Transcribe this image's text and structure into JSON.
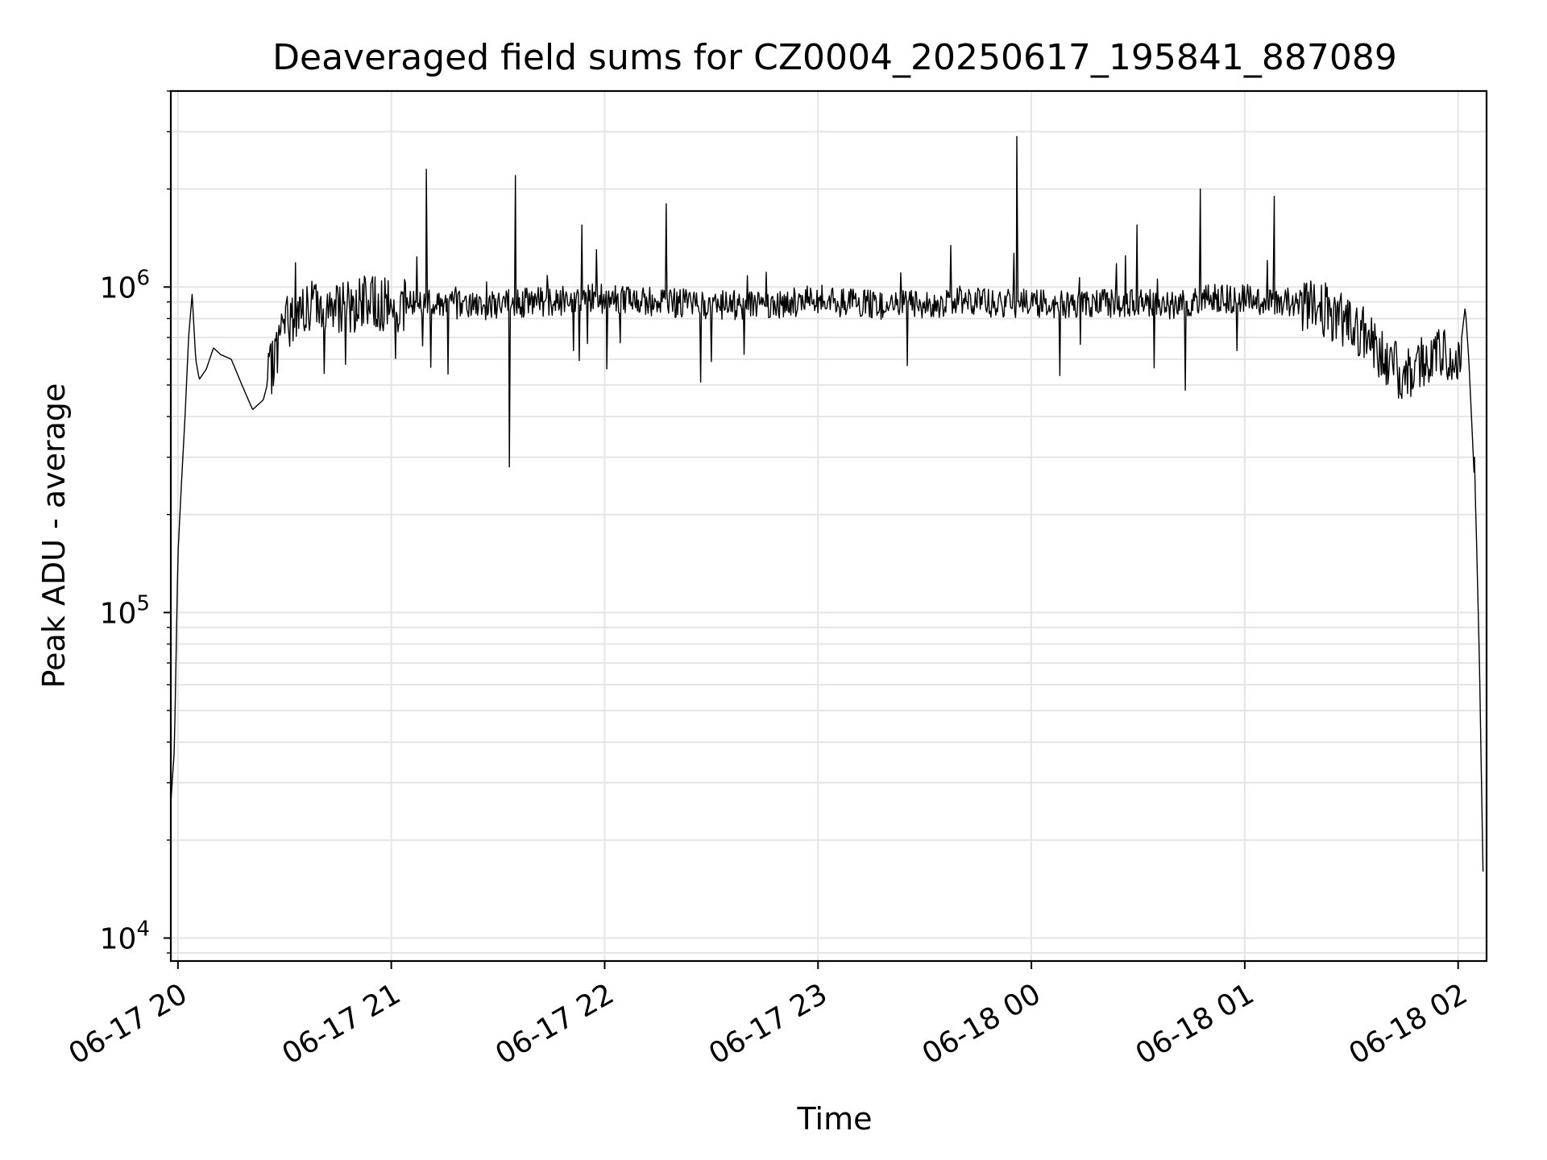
{
  "chart_data": {
    "type": "line",
    "title": "Deaveraged field sums for CZ0004_20250617_195841_887089",
    "xlabel": "Time",
    "ylabel": "Peak ADU - average",
    "y_scale": "log",
    "grid": true,
    "legend": "none",
    "line_color": "#000000",
    "grid_color": "#e5e5e5",
    "xlim": [
      "2025-06-17T19:58",
      "2025-06-18T02:08"
    ],
    "ylim": [
      8500,
      4000000
    ],
    "x_ticks": [
      {
        "t": "2025-06-17T20:00",
        "label": "06-17 20"
      },
      {
        "t": "2025-06-17T21:00",
        "label": "06-17 21"
      },
      {
        "t": "2025-06-17T22:00",
        "label": "06-17 22"
      },
      {
        "t": "2025-06-17T23:00",
        "label": "06-17 23"
      },
      {
        "t": "2025-06-18T00:00",
        "label": "06-18 00"
      },
      {
        "t": "2025-06-18T01:00",
        "label": "06-18 01"
      },
      {
        "t": "2025-06-18T02:00",
        "label": "06-18 02"
      }
    ],
    "y_ticks": [
      {
        "value": 10000,
        "base": "10",
        "exp": "4"
      },
      {
        "value": 100000,
        "base": "10",
        "exp": "5"
      },
      {
        "value": 1000000,
        "base": "10",
        "exp": "6"
      }
    ],
    "series": [
      {
        "x": [
          "2025-06-17T19:58",
          "2025-06-17T19:59",
          "2025-06-17T20:00",
          "2025-06-17T20:01",
          "2025-06-17T20:02",
          "2025-06-17T20:03",
          "2025-06-17T20:04",
          "2025-06-17T20:05",
          "2025-06-17T20:06",
          "2025-06-17T20:08",
          "2025-06-17T20:10",
          "2025-06-17T20:12",
          "2025-06-17T20:15",
          "2025-06-17T20:18",
          "2025-06-17T20:21",
          "2025-06-17T20:24",
          "2025-06-17T20:27",
          "2025-06-17T20:30",
          "2025-06-17T20:33",
          "2025-06-17T20:36",
          "2025-06-17T20:40",
          "2025-06-17T20:45",
          "2025-06-17T20:50",
          "2025-06-17T20:55",
          "2025-06-17T21:00",
          "2025-06-17T21:08",
          "2025-06-17T21:13",
          "2025-06-17T21:20",
          "2025-06-17T21:30",
          "2025-06-17T21:40",
          "2025-06-17T21:45",
          "2025-06-17T21:55",
          "2025-06-17T22:05",
          "2025-06-17T22:15",
          "2025-06-17T22:30",
          "2025-06-17T22:45",
          "2025-06-17T22:55",
          "2025-06-17T22:59",
          "2025-06-17T23:05",
          "2025-06-17T23:15",
          "2025-06-17T23:25",
          "2025-06-17T23:35",
          "2025-06-17T23:42",
          "2025-06-17T23:50",
          "2025-06-18T00:00",
          "2025-06-18T00:02",
          "2025-06-18T00:10",
          "2025-06-18T00:20",
          "2025-06-18T00:30",
          "2025-06-18T00:40",
          "2025-06-18T00:45",
          "2025-06-18T00:50",
          "2025-06-18T01:00",
          "2025-06-18T01:10",
          "2025-06-18T01:20",
          "2025-06-18T01:25",
          "2025-06-18T01:30",
          "2025-06-18T01:35",
          "2025-06-18T01:40",
          "2025-06-18T01:45",
          "2025-06-18T01:50",
          "2025-06-18T01:55",
          "2025-06-18T01:58",
          "2025-06-18T02:00",
          "2025-06-18T02:01",
          "2025-06-18T02:02",
          "2025-06-18T02:03",
          "2025-06-18T02:04",
          "2025-06-18T02:05",
          "2025-06-18T02:06",
          "2025-06-18T02:07"
        ],
        "y": [
          26000,
          38000,
          150000,
          250000,
          400000,
          700000,
          950000,
          600000,
          520000,
          560000,
          650000,
          620000,
          600000,
          500000,
          420000,
          450000,
          600000,
          780000,
          820000,
          850000,
          880000,
          870000,
          880000,
          900000,
          880000,
          890000,
          900000,
          880000,
          880000,
          900000,
          900000,
          920000,
          920000,
          900000,
          880000,
          880000,
          900000,
          920000,
          900000,
          880000,
          880000,
          890000,
          920000,
          880000,
          900000,
          890000,
          880000,
          890000,
          900000,
          880000,
          900000,
          920000,
          920000,
          900000,
          880000,
          820000,
          780000,
          700000,
          600000,
          520000,
          600000,
          620000,
          600000,
          560000,
          700000,
          870000,
          600000,
          350000,
          200000,
          70000,
          16000
        ]
      }
    ]
  }
}
